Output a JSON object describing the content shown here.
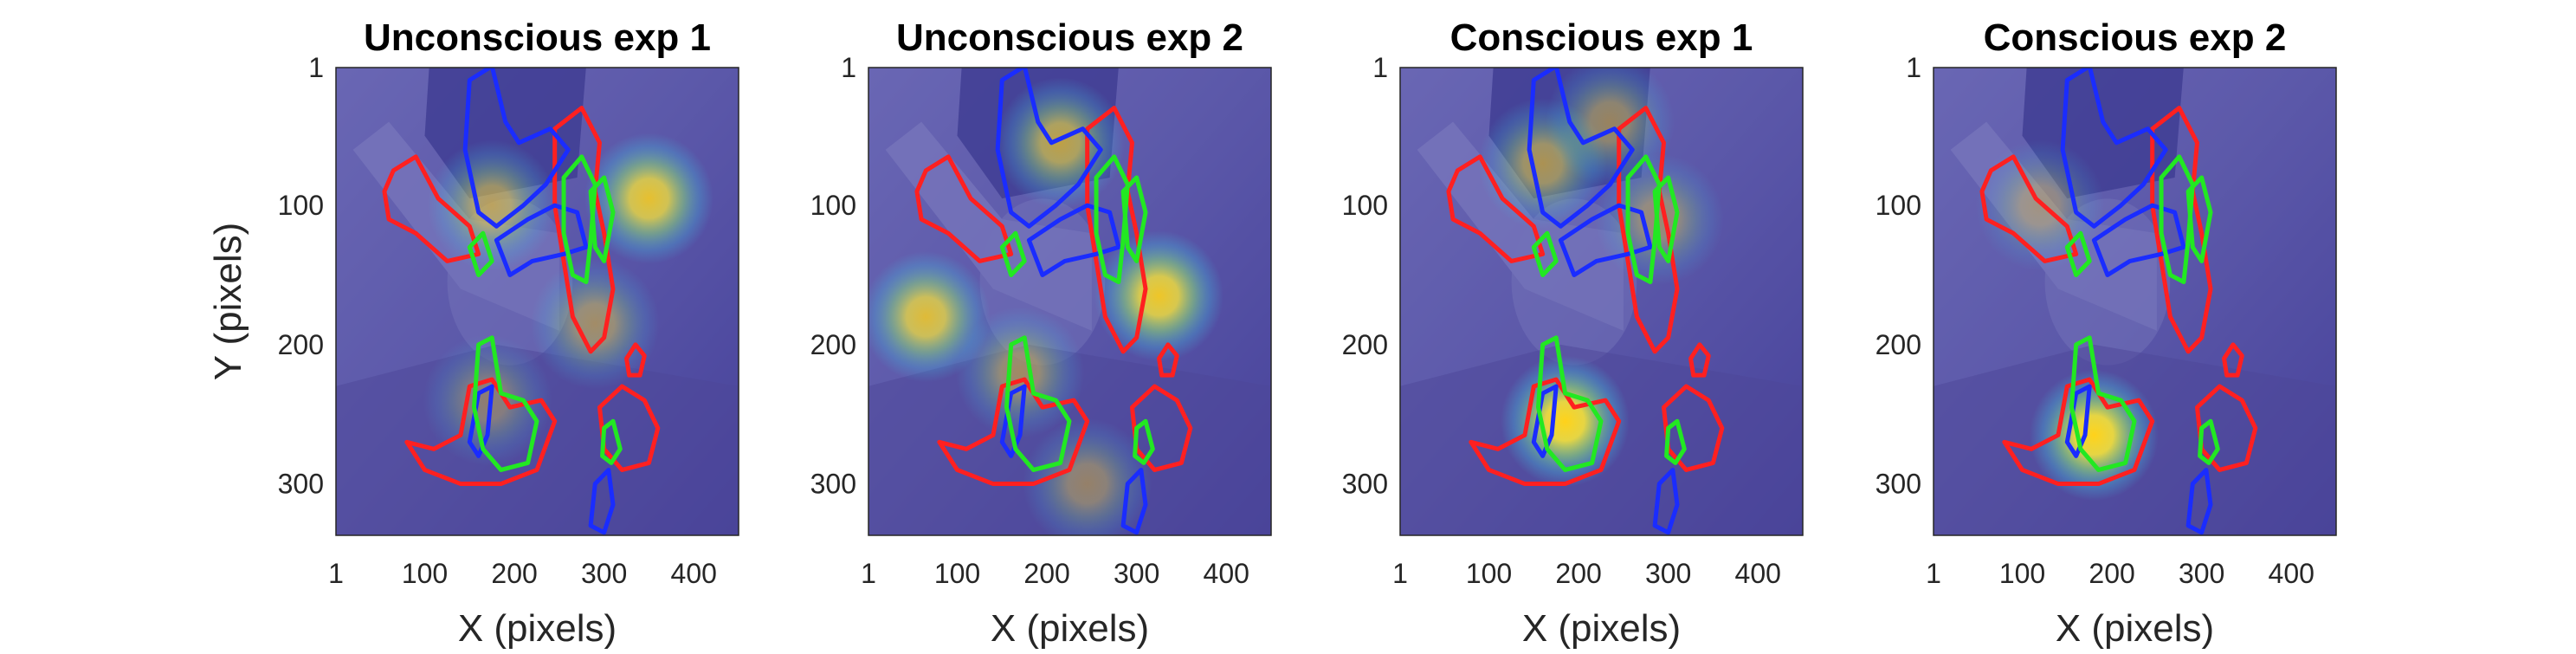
{
  "chart_data": [
    {
      "type": "heatmap",
      "title": "Unconscious exp 1",
      "xlabel": "X (pixels)",
      "ylabel": "Y (pixels)",
      "xlim": [
        1,
        450
      ],
      "ylim": [
        1,
        337
      ],
      "xticks": [
        "1",
        "100",
        "200",
        "300",
        "400"
      ],
      "yticks": [
        "1",
        "100",
        "200",
        "300"
      ],
      "hotspots": [
        {
          "x": 350,
          "y": 95,
          "intensity": 0.85
        },
        {
          "x": 175,
          "y": 100,
          "intensity": 0.55
        },
        {
          "x": 290,
          "y": 185,
          "intensity": 0.45
        },
        {
          "x": 170,
          "y": 240,
          "intensity": 0.35
        }
      ]
    },
    {
      "type": "heatmap",
      "title": "Unconscious exp 2",
      "xlabel": "X (pixels)",
      "ylabel": "",
      "xlim": [
        1,
        450
      ],
      "ylim": [
        1,
        337
      ],
      "xticks": [
        "1",
        "100",
        "200",
        "300",
        "400"
      ],
      "yticks": [
        "1",
        "100",
        "200",
        "300"
      ],
      "hotspots": [
        {
          "x": 65,
          "y": 180,
          "intensity": 0.8
        },
        {
          "x": 325,
          "y": 165,
          "intensity": 0.9
        },
        {
          "x": 215,
          "y": 55,
          "intensity": 0.65
        },
        {
          "x": 170,
          "y": 220,
          "intensity": 0.45
        },
        {
          "x": 245,
          "y": 300,
          "intensity": 0.4
        }
      ]
    },
    {
      "type": "heatmap",
      "title": "Conscious exp 1",
      "xlabel": "X (pixels)",
      "ylabel": "",
      "xlim": [
        1,
        450
      ],
      "ylim": [
        1,
        337
      ],
      "xticks": [
        "1",
        "100",
        "200",
        "300",
        "400"
      ],
      "yticks": [
        "1",
        "100",
        "200",
        "300"
      ],
      "hotspots": [
        {
          "x": 185,
          "y": 255,
          "intensity": 1.0
        },
        {
          "x": 160,
          "y": 70,
          "intensity": 0.55
        },
        {
          "x": 235,
          "y": 40,
          "intensity": 0.45
        },
        {
          "x": 290,
          "y": 110,
          "intensity": 0.4
        }
      ]
    },
    {
      "type": "heatmap",
      "title": "Conscious exp 2",
      "xlabel": "X (pixels)",
      "ylabel": "",
      "xlim": [
        1,
        450
      ],
      "ylim": [
        1,
        337
      ],
      "xticks": [
        "1",
        "100",
        "200",
        "300",
        "400"
      ],
      "yticks": [
        "1",
        "100",
        "200",
        "300"
      ],
      "hotspots": [
        {
          "x": 180,
          "y": 265,
          "intensity": 1.0
        },
        {
          "x": 120,
          "y": 100,
          "intensity": 0.35
        }
      ]
    }
  ],
  "colors": {
    "overlay_base": "#3d3fb0",
    "photo_base": "#6f6aa0",
    "contour_red": "#ff2020",
    "contour_green": "#22e822",
    "contour_blue": "#1a2cff"
  }
}
